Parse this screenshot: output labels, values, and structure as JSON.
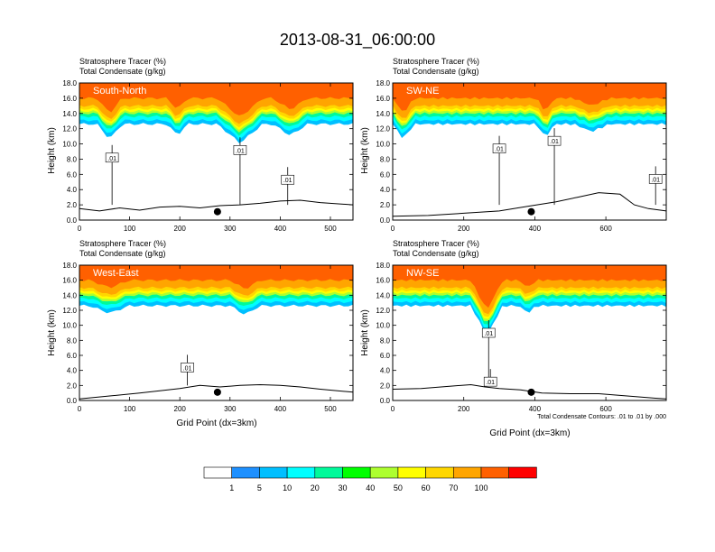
{
  "title": "2013-08-31_06:00:00",
  "footnote": "Total Condensate Contours: .01 to .01 by .000",
  "colorbar": {
    "colors": [
      "#ffffff",
      "#1e90ff",
      "#00bfff",
      "#00ffff",
      "#00fa9a",
      "#00ff00",
      "#adff2f",
      "#ffff00",
      "#ffd700",
      "#ffa500",
      "#ff6000",
      "#ff0000"
    ],
    "labels": [
      "1",
      "5",
      "10",
      "20",
      "30",
      "40",
      "50",
      "60",
      "70",
      "100"
    ]
  },
  "chart_data": [
    {
      "type": "heatmap",
      "panel": "South-North",
      "label": "South-North",
      "line1": "Stratosphere Tracer   (%)",
      "line2": "Total Condensate   (g/kg)",
      "ylabel": "Height (km)",
      "xlabel": "",
      "xlim": [
        0,
        545
      ],
      "ylim": [
        0,
        18
      ],
      "xticks": [
        "0",
        "100",
        "200",
        "300",
        "400",
        "500"
      ],
      "yticks": [
        "0.0",
        "2.0",
        "4.0",
        "6.0",
        "8.0",
        "10.0",
        "12.0",
        "14.0",
        "16.0",
        "18.0"
      ],
      "tracer_layers": [
        {
          "percent": "100",
          "base_km": 16.0
        },
        {
          "percent": "70",
          "base_km": 15.0
        },
        {
          "percent": "60",
          "base_km": 14.6
        },
        {
          "percent": "50",
          "base_km": 14.3
        },
        {
          "percent": "40",
          "base_km": 14.0
        },
        {
          "percent": "20",
          "base_km": 13.6
        },
        {
          "percent": "10",
          "base_km": 13.1
        },
        {
          "percent": "5",
          "base_km": 12.6
        }
      ],
      "tracer_dips": [
        {
          "x": 60,
          "half_width": 25,
          "depth_km": 2.0
        },
        {
          "x": 195,
          "half_width": 20,
          "depth_km": 1.5
        },
        {
          "x": 320,
          "half_width": 45,
          "depth_km": 2.5
        },
        {
          "x": 420,
          "half_width": 35,
          "depth_km": 1.5
        }
      ],
      "contour_labels": [
        {
          "text": ".01",
          "x": 65,
          "y_km": 8.2
        },
        {
          "text": ".01",
          "x": 320,
          "y_km": 9.2
        },
        {
          "text": ".01",
          "x": 415,
          "y_km": 5.3
        }
      ],
      "point_marker": {
        "x": 275,
        "y_km": 1.1
      },
      "terrain_km": [
        [
          0,
          1.5
        ],
        [
          40,
          1.2
        ],
        [
          80,
          1.6
        ],
        [
          120,
          1.3
        ],
        [
          160,
          1.7
        ],
        [
          200,
          1.8
        ],
        [
          240,
          1.6
        ],
        [
          280,
          1.9
        ],
        [
          320,
          2.0
        ],
        [
          360,
          2.2
        ],
        [
          400,
          2.5
        ],
        [
          440,
          2.6
        ],
        [
          480,
          2.3
        ],
        [
          545,
          2.0
        ]
      ]
    },
    {
      "type": "heatmap",
      "panel": "SW-NE",
      "label": "SW-NE",
      "line1": "Stratosphere Tracer   (%)",
      "line2": "Total Condensate   (g/kg)",
      "ylabel": "Height (km)",
      "xlabel": "",
      "xlim": [
        0,
        770
      ],
      "ylim": [
        0,
        18
      ],
      "xticks": [
        "0",
        "200",
        "400",
        "600"
      ],
      "yticks": [
        "0.0",
        "2.0",
        "4.0",
        "6.0",
        "8.0",
        "10.0",
        "12.0",
        "14.0",
        "16.0",
        "18.0"
      ],
      "tracer_layers": [
        {
          "percent": "100",
          "base_km": 16.0
        },
        {
          "percent": "70",
          "base_km": 15.0
        },
        {
          "percent": "60",
          "base_km": 14.6
        },
        {
          "percent": "50",
          "base_km": 14.3
        },
        {
          "percent": "40",
          "base_km": 14.0
        },
        {
          "percent": "20",
          "base_km": 13.6
        },
        {
          "percent": "10",
          "base_km": 13.1
        },
        {
          "percent": "5",
          "base_km": 12.6
        }
      ],
      "tracer_dips": [
        {
          "x": 30,
          "half_width": 30,
          "depth_km": 2.0
        },
        {
          "x": 430,
          "half_width": 25,
          "depth_km": 1.8
        },
        {
          "x": 560,
          "half_width": 50,
          "depth_km": 1.0
        }
      ],
      "contour_labels": [
        {
          "text": ".01",
          "x": 300,
          "y_km": 9.4
        },
        {
          "text": ".01",
          "x": 455,
          "y_km": 10.4
        },
        {
          "text": ".01",
          "x": 740,
          "y_km": 5.4
        }
      ],
      "point_marker": {
        "x": 390,
        "y_km": 1.1
      },
      "terrain_km": [
        [
          0,
          0.5
        ],
        [
          100,
          0.6
        ],
        [
          200,
          0.9
        ],
        [
          300,
          1.2
        ],
        [
          380,
          1.8
        ],
        [
          460,
          2.4
        ],
        [
          520,
          3.0
        ],
        [
          580,
          3.6
        ],
        [
          640,
          3.4
        ],
        [
          680,
          2.0
        ],
        [
          720,
          1.5
        ],
        [
          770,
          1.2
        ]
      ]
    },
    {
      "type": "heatmap",
      "panel": "West-East",
      "label": "West-East",
      "line1": "Stratosphere Tracer   (%)",
      "line2": "Total Condensate   (g/kg)",
      "ylabel": "Height (km)",
      "xlabel": "Grid Point (dx=3km)",
      "xlim": [
        0,
        545
      ],
      "ylim": [
        0,
        18
      ],
      "xticks": [
        "0",
        "100",
        "200",
        "300",
        "400",
        "500"
      ],
      "yticks": [
        "0.0",
        "2.0",
        "4.0",
        "6.0",
        "8.0",
        "10.0",
        "12.0",
        "14.0",
        "16.0",
        "18.0"
      ],
      "tracer_layers": [
        {
          "percent": "100",
          "base_km": 16.0
        },
        {
          "percent": "70",
          "base_km": 15.0
        },
        {
          "percent": "60",
          "base_km": 14.6
        },
        {
          "percent": "50",
          "base_km": 14.3
        },
        {
          "percent": "40",
          "base_km": 14.0
        },
        {
          "percent": "20",
          "base_km": 13.6
        },
        {
          "percent": "10",
          "base_km": 13.1
        },
        {
          "percent": "5",
          "base_km": 12.6
        }
      ],
      "tracer_dips": [
        {
          "x": 60,
          "half_width": 40,
          "depth_km": 1.0
        },
        {
          "x": 330,
          "half_width": 30,
          "depth_km": 1.2
        }
      ],
      "contour_labels": [
        {
          "text": ".01",
          "x": 215,
          "y_km": 4.4
        }
      ],
      "point_marker": {
        "x": 275,
        "y_km": 1.1
      },
      "terrain_km": [
        [
          0,
          0.2
        ],
        [
          60,
          0.6
        ],
        [
          120,
          1.0
        ],
        [
          160,
          1.3
        ],
        [
          200,
          1.6
        ],
        [
          240,
          2.0
        ],
        [
          280,
          1.8
        ],
        [
          320,
          2.0
        ],
        [
          360,
          2.1
        ],
        [
          400,
          2.0
        ],
        [
          440,
          1.8
        ],
        [
          480,
          1.5
        ],
        [
          545,
          1.1
        ]
      ]
    },
    {
      "type": "heatmap",
      "panel": "NW-SE",
      "label": "NW-SE",
      "line1": "Stratosphere Tracer   (%)",
      "line2": "Total Condensate   (g/kg)",
      "ylabel": "Height (km)",
      "xlabel": "Grid Point (dx=3km)",
      "xlim": [
        0,
        770
      ],
      "ylim": [
        0,
        18
      ],
      "xticks": [
        "0",
        "200",
        "400",
        "600"
      ],
      "yticks": [
        "0.0",
        "2.0",
        "4.0",
        "6.0",
        "8.0",
        "10.0",
        "12.0",
        "14.0",
        "16.0",
        "18.0"
      ],
      "tracer_layers": [
        {
          "percent": "100",
          "base_km": 16.0
        },
        {
          "percent": "70",
          "base_km": 15.0
        },
        {
          "percent": "60",
          "base_km": 14.6
        },
        {
          "percent": "50",
          "base_km": 14.3
        },
        {
          "percent": "40",
          "base_km": 14.0
        },
        {
          "percent": "20",
          "base_km": 13.6
        },
        {
          "percent": "10",
          "base_km": 13.1
        },
        {
          "percent": "5",
          "base_km": 12.6
        }
      ],
      "tracer_dips": [
        {
          "x": 265,
          "half_width": 45,
          "depth_km": 4.0
        },
        {
          "x": 380,
          "half_width": 25,
          "depth_km": 1.0
        }
      ],
      "contour_labels": [
        {
          "text": ".01",
          "x": 270,
          "y_km": 9.0
        },
        {
          "text": ".01",
          "x": 275,
          "y_km": 2.5
        }
      ],
      "point_marker": {
        "x": 390,
        "y_km": 1.1
      },
      "terrain_km": [
        [
          0,
          1.5
        ],
        [
          80,
          1.6
        ],
        [
          160,
          1.9
        ],
        [
          220,
          2.1
        ],
        [
          260,
          1.8
        ],
        [
          300,
          1.6
        ],
        [
          360,
          1.4
        ],
        [
          420,
          1.0
        ],
        [
          500,
          0.9
        ],
        [
          580,
          0.9
        ],
        [
          660,
          0.6
        ],
        [
          740,
          0.3
        ],
        [
          770,
          0.2
        ]
      ]
    }
  ]
}
